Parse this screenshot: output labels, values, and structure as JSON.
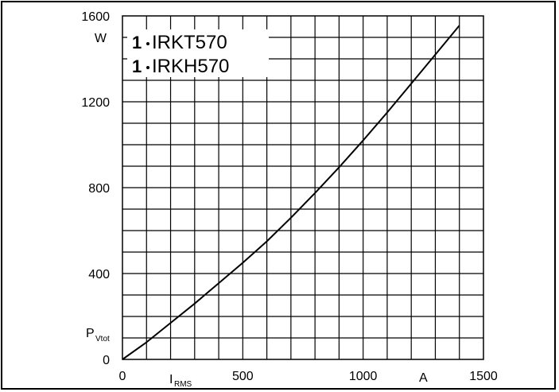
{
  "chart_data": {
    "type": "line",
    "title": "",
    "xlabel": "I",
    "xlabel_sub": "RMS",
    "x_unit": "A",
    "ylabel": "P",
    "ylabel_sub": "Vtot",
    "y_unit": "W",
    "xlim": [
      0,
      1500
    ],
    "ylim": [
      0,
      1600
    ],
    "x_ticks": [
      0,
      500,
      1000,
      1500
    ],
    "x_tick_labels": [
      "0",
      "500",
      "1000",
      "1500"
    ],
    "y_ticks": [
      0,
      400,
      800,
      1200,
      1600
    ],
    "y_tick_labels": [
      "0",
      "400",
      "800",
      "1200",
      "1600"
    ],
    "grid": true,
    "legend_position": "top-left",
    "legend": [
      {
        "number": "1",
        "text": "IRKT570"
      },
      {
        "number": "1",
        "text": "IRKH570"
      }
    ],
    "series": [
      {
        "name": "",
        "color": "#000000",
        "x": [
          0,
          100,
          200,
          300,
          400,
          500,
          600,
          700,
          800,
          900,
          1000,
          1100,
          1200,
          1300,
          1400
        ],
        "y": [
          0,
          80,
          170,
          260,
          355,
          450,
          550,
          660,
          775,
          895,
          1020,
          1150,
          1285,
          1420,
          1555
        ]
      }
    ]
  }
}
